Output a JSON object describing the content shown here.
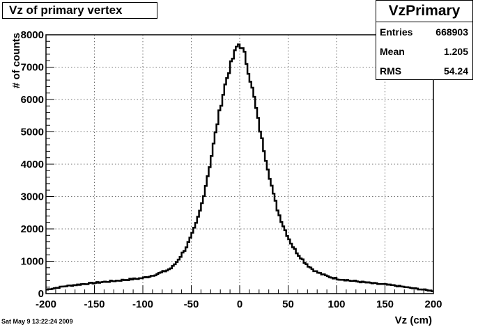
{
  "title_box": {
    "text": "Vz of primary vertex"
  },
  "stats": {
    "name": "VzPrimary",
    "rows": [
      {
        "label": "Entries",
        "value": "668903"
      },
      {
        "label": "Mean",
        "value": "1.205"
      },
      {
        "label": "RMS",
        "value": "54.24"
      }
    ]
  },
  "timestamp": "Sat May  9 13:22:24 2009",
  "chart_data": {
    "type": "line",
    "style": "step-histogram",
    "title": "Vz of primary vertex",
    "xlabel": "Vz (cm)",
    "ylabel": "# of counts",
    "xlim": [
      -200,
      200
    ],
    "ylim": [
      0,
      8000
    ],
    "grid": true,
    "x_ticks": [
      -200,
      -150,
      -100,
      -50,
      0,
      50,
      100,
      150,
      200
    ],
    "y_ticks": [
      0,
      1000,
      2000,
      3000,
      4000,
      5000,
      6000,
      7000,
      8000
    ],
    "series": [
      {
        "x": [
          -200,
          -180,
          -160,
          -140,
          -120,
          -100,
          -90,
          -80,
          -75,
          -70,
          -65,
          -60,
          -55,
          -50,
          -45,
          -40,
          -35,
          -30,
          -25,
          -20,
          -15,
          -10,
          -5,
          -2,
          0,
          2,
          5,
          10,
          15,
          20,
          25,
          30,
          35,
          40,
          45,
          50,
          55,
          60,
          65,
          70,
          75,
          80,
          90,
          100,
          120,
          140,
          160,
          180,
          200
        ],
        "values": [
          120,
          230,
          300,
          360,
          420,
          480,
          560,
          660,
          720,
          800,
          980,
          1200,
          1450,
          1760,
          2150,
          2650,
          3350,
          4100,
          4950,
          5750,
          6450,
          7000,
          7450,
          7700,
          7720,
          7600,
          7400,
          6750,
          6050,
          5200,
          4450,
          3750,
          3050,
          2500,
          2100,
          1750,
          1450,
          1230,
          1050,
          880,
          760,
          660,
          540,
          460,
          380,
          310,
          250,
          160,
          80
        ]
      }
    ]
  }
}
